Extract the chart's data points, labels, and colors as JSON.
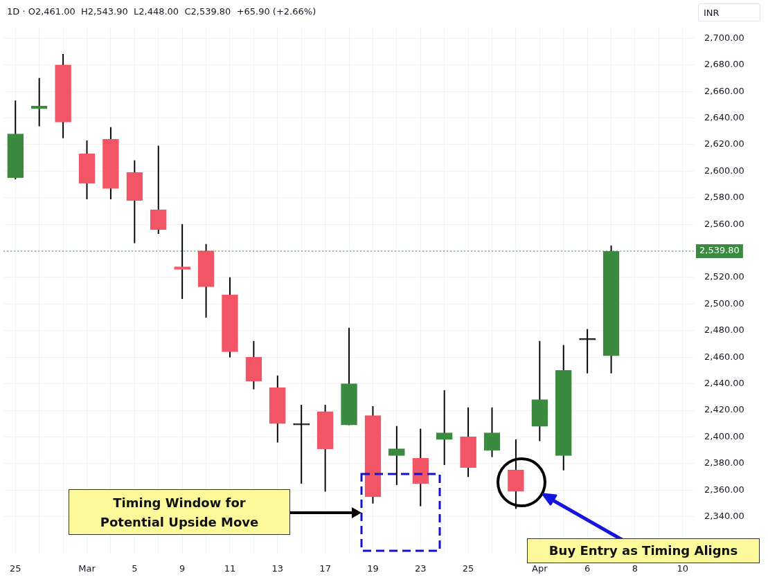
{
  "chart_data": {
    "type": "candlestick",
    "title": "1D · O2,461.00  H2,543.90  L2,448.00  C2,539.80  +65.90 (+2.66%)",
    "ylabel": "INR",
    "categories": [
      "25",
      null,
      null,
      "Mar",
      null,
      "5",
      null,
      "9",
      null,
      "11",
      null,
      "13",
      null,
      "17",
      null,
      "19",
      null,
      "23",
      null,
      "25",
      null,
      null,
      "Apr",
      null,
      "6",
      null,
      "8",
      null,
      "10"
    ],
    "ohlc": [
      [
        2595,
        2653,
        2594,
        2628
      ],
      [
        2647,
        2670,
        2634,
        2649
      ],
      [
        2680,
        2688,
        2625,
        2637
      ],
      [
        2613,
        2623,
        2579,
        2591
      ],
      [
        2624,
        2633,
        2579,
        2587
      ],
      [
        2599,
        2608,
        2546,
        2578
      ],
      [
        2571,
        2619,
        2553,
        2556
      ],
      [
        2528,
        2560,
        2504,
        2526
      ],
      [
        2540,
        2545,
        2490,
        2513
      ],
      [
        2507,
        2520,
        2460,
        2464
      ],
      [
        2460,
        2472,
        2436,
        2442
      ],
      [
        2437,
        2446,
        2396,
        2410
      ],
      [
        2409,
        2424,
        2365,
        2409
      ],
      [
        2419,
        2424,
        2359,
        2391
      ],
      [
        2409,
        2482,
        2409,
        2440
      ],
      [
        2416,
        2423,
        2350,
        2355
      ],
      [
        2386,
        2408,
        2364,
        2391
      ],
      [
        2384,
        2406,
        2348,
        2365
      ],
      [
        2398,
        2435,
        2379,
        2403
      ],
      [
        2400,
        2422,
        2370,
        2377
      ],
      [
        2390,
        2422,
        2385,
        2403
      ],
      [
        2375,
        2398,
        2346,
        2359
      ],
      [
        2408,
        2472,
        2397,
        2428
      ],
      [
        2386,
        2469,
        2375,
        2450
      ],
      [
        2473,
        2481,
        2448,
        2473
      ],
      [
        2461,
        2543.9,
        2448,
        2539.8
      ],
      null,
      null,
      null
    ],
    "colors": [
      "#3a8a3f",
      "#3a8a3f",
      "#f25565",
      "#f25565",
      "#f25565",
      "#f25565",
      "#f25565",
      "#f25565",
      "#f25565",
      "#f25565",
      "#f25565",
      "#f25565",
      "#000000",
      "#f25565",
      "#3a8a3f",
      "#f25565",
      "#3a8a3f",
      "#f25565",
      "#3a8a3f",
      "#f25565",
      "#3a8a3f",
      "#f25565",
      "#3a8a3f",
      "#3a8a3f",
      "#000000",
      "#3a8a3f",
      null,
      null,
      null
    ],
    "ylim": [
      2312,
      2708
    ],
    "yticks": [
      {
        "value": 2340,
        "label": "2,340.00"
      },
      {
        "value": 2360,
        "label": "2,360.00"
      },
      {
        "value": 2380,
        "label": "2,380.00"
      },
      {
        "value": 2400,
        "label": "2,400.00"
      },
      {
        "value": 2420,
        "label": "2,420.00"
      },
      {
        "value": 2440,
        "label": "2,440.00"
      },
      {
        "value": 2460,
        "label": "2,460.00"
      },
      {
        "value": 2480,
        "label": "2,480.00"
      },
      {
        "value": 2500,
        "label": "2,500.00"
      },
      {
        "value": 2520,
        "label": "2,520.00"
      },
      {
        "value": 2540,
        "label": null
      },
      {
        "value": 2560,
        "label": "2,560.00"
      },
      {
        "value": 2580,
        "label": "2,580.00"
      },
      {
        "value": 2600,
        "label": "2,600.00"
      },
      {
        "value": 2620,
        "label": "2,620.00"
      },
      {
        "value": 2640,
        "label": "2,640.00"
      },
      {
        "value": 2660,
        "label": "2,660.00"
      },
      {
        "value": 2680,
        "label": "2,680.00"
      },
      {
        "value": 2700,
        "label": "2,700.00"
      }
    ],
    "ref_lines": [
      {
        "axis": "y",
        "value": 2539.8,
        "label": "2,539.80",
        "color": "#3a8a3f",
        "line_style": "dotted"
      }
    ],
    "annotations": [
      "Timing Window for Potential Upside Move",
      "Buy Entry as Timing Aligns"
    ],
    "grid": true,
    "legend": false
  }
}
